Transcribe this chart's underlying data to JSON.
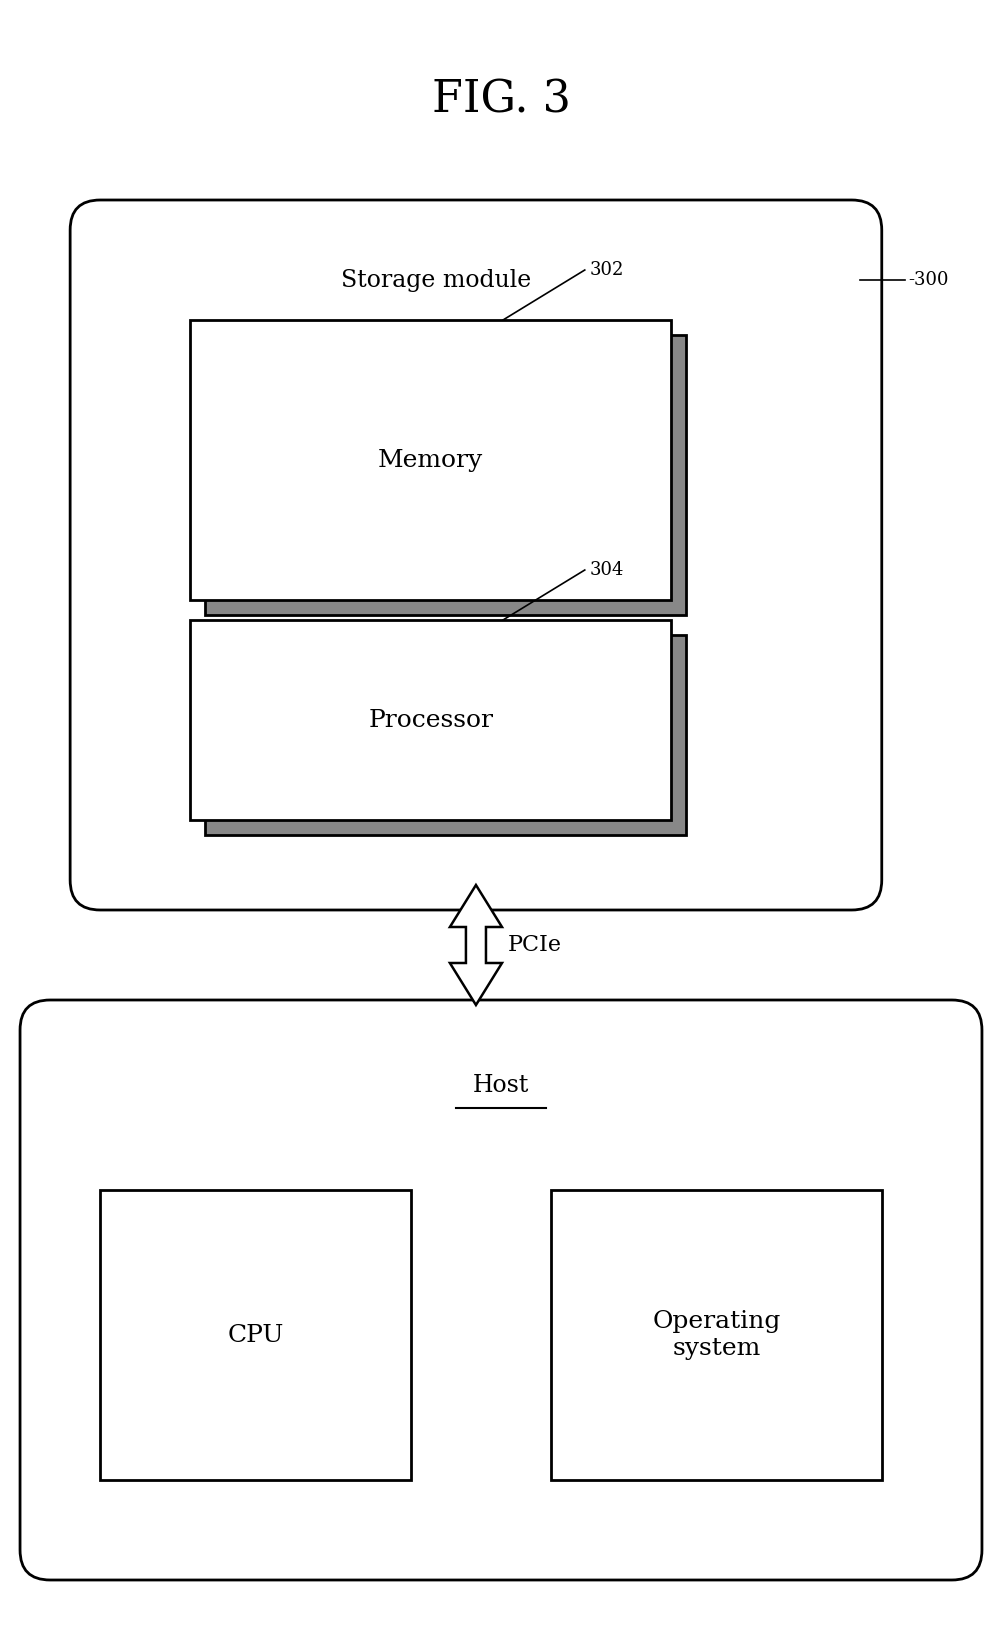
{
  "title": "FIG. 3",
  "bg_color": "#ffffff",
  "storage_module_label": "Storage module",
  "storage_module_ref": "-300",
  "memory_label": "Memory",
  "memory_ref": "302",
  "processor_label": "Processor",
  "processor_ref": "304",
  "pcie_label": "PCIe",
  "host_label": "Host",
  "cpu_label": "CPU",
  "os_label": "Operating\nsystem",
  "line_color": "#000000",
  "box_fill": "#ffffff",
  "shadow_color": "#888888",
  "font_size_title": 32,
  "font_size_label": 16,
  "font_size_ref": 13
}
